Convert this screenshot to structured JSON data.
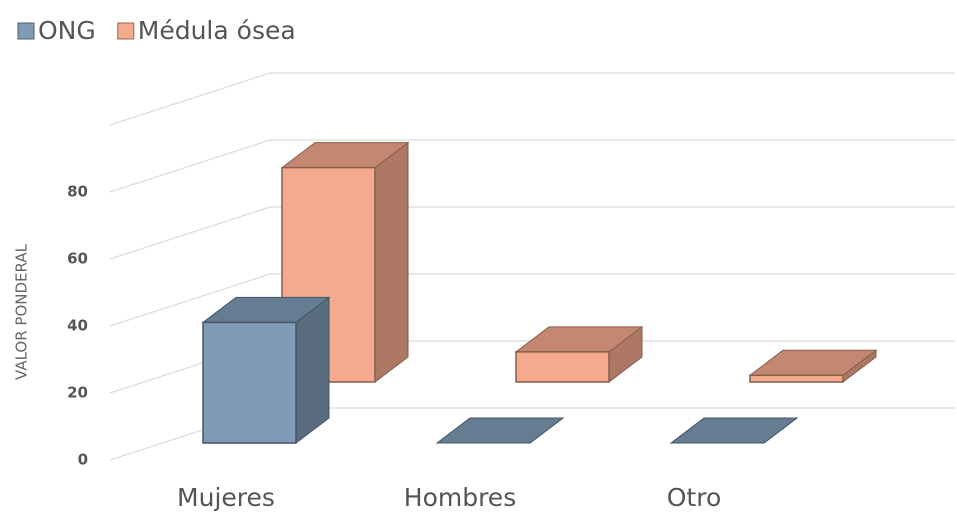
{
  "chart_data": {
    "type": "bar3d",
    "y_label": "VALOR PONDERAL",
    "categories": [
      "Mujeres",
      "Hombres",
      "Otro"
    ],
    "series": [
      {
        "name": "ONG",
        "color": "#7f9bb6",
        "values": [
          36,
          0,
          0
        ]
      },
      {
        "name": "Médula ósea",
        "color": "#f5aa8e",
        "values": [
          64,
          9,
          2
        ]
      }
    ],
    "ylim": [
      0,
      100
    ],
    "yticks": [
      0,
      20,
      40,
      60,
      80
    ],
    "grid": true,
    "legend": "top-left"
  }
}
